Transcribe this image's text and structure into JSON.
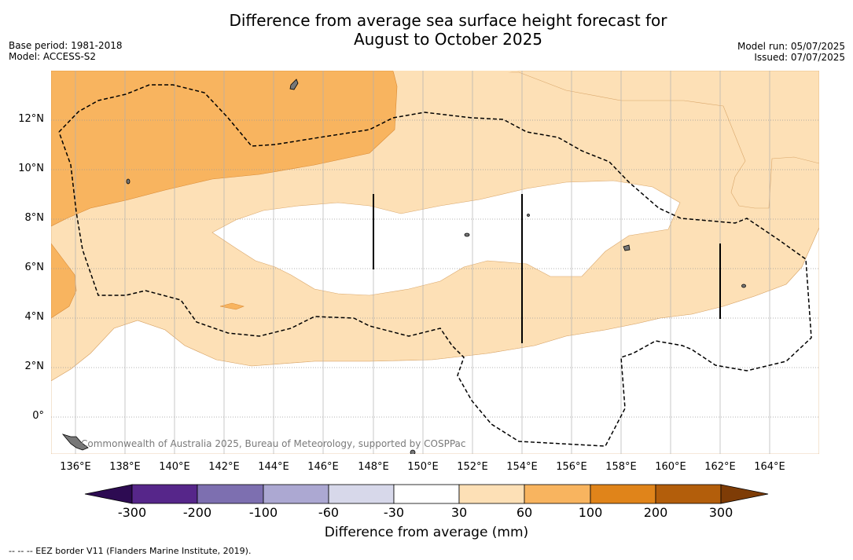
{
  "title": {
    "line1": "Difference from average sea surface height forecast for",
    "line2": "August to October 2025"
  },
  "meta": {
    "base_period": "Base period: 1981-2018",
    "model": "Model: ACCESS-S2",
    "model_run": "Model run: 05/07/2025",
    "issued": "Issued: 07/07/2025"
  },
  "map": {
    "lat_labels": [
      "12°N",
      "10°N",
      "8°N",
      "6°N",
      "4°N",
      "2°N",
      "0°"
    ],
    "lon_labels": [
      "136°E",
      "138°E",
      "140°E",
      "142°E",
      "144°E",
      "146°E",
      "148°E",
      "150°E",
      "152°E",
      "154°E",
      "156°E",
      "158°E",
      "160°E",
      "162°E",
      "164°E"
    ],
    "copyright": "Commonwealth of Australia 2025, Bureau of Meteorology, supported by COSPPac",
    "fill_colors": {
      "band_30_60": "#fde0b6",
      "band_60_100": "#f8b45f",
      "land": "#777777"
    }
  },
  "colorbar": {
    "title": "Difference from average (mm)",
    "ticks": [
      "-300",
      "-200",
      "-100",
      "-60",
      "-30",
      "30",
      "60",
      "100",
      "200",
      "300"
    ],
    "colors": [
      "#2d0b52",
      "#56268a",
      "#7d6fb0",
      "#aca8d2",
      "#d7d8ea",
      "#ffffff",
      "#fde0b6",
      "#f8b45f",
      "#e0841a",
      "#b35e0b",
      "#7e3c06"
    ]
  },
  "footnote": "--  --  -- EEZ border V11 (Flanders Marine Institute, 2019)."
}
